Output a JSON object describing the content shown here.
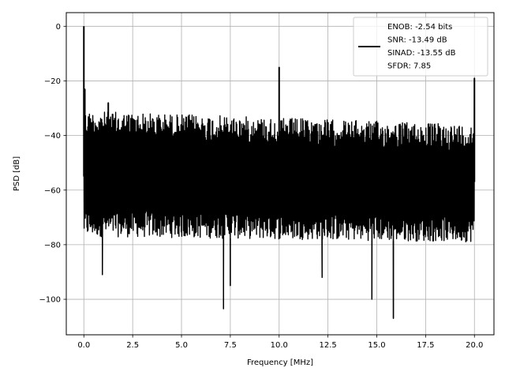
{
  "chart_data": {
    "type": "line",
    "xlabel": "Frequency [MHz]",
    "ylabel": "PSD [dB]",
    "xlim": [
      -0.9,
      21.0
    ],
    "ylim": [
      -113,
      5
    ],
    "xticks": [
      0.0,
      2.5,
      5.0,
      7.5,
      10.0,
      12.5,
      15.0,
      17.5,
      20.0
    ],
    "xtick_labels": [
      "0.0",
      "2.5",
      "5.0",
      "7.5",
      "10.0",
      "12.5",
      "15.0",
      "17.5",
      "20.0"
    ],
    "yticks": [
      0,
      -20,
      -40,
      -60,
      -80,
      -100
    ],
    "ytick_labels": [
      "0",
      "−20",
      "−40",
      "−60",
      "−80",
      "−100"
    ],
    "grid": true,
    "line_color": "#000000",
    "legend": {
      "placement": "top-right",
      "entries": [
        "ENOB: -2.54 bits",
        "SNR: -13.49 dB",
        "SINAD: -13.55 dB",
        "SFDR: 7.85"
      ]
    },
    "series": [
      {
        "x_range": [
          0.0,
          20.0
        ],
        "noise_floor_top": [
          [
            0.0,
            -31
          ],
          [
            20.0,
            -36
          ]
        ],
        "noise_floor_bottom": [
          [
            0.0,
            -77
          ],
          [
            20.0,
            -79
          ]
        ],
        "noise_floor_mean": [
          [
            0.0,
            -55
          ],
          [
            20.0,
            -57
          ]
        ],
        "peaks": [
          [
            0.0,
            0
          ],
          [
            0.05,
            -23
          ],
          [
            1.25,
            -28
          ],
          [
            10.0,
            -15
          ],
          [
            20.0,
            -19
          ]
        ],
        "dips": [
          [
            7.15,
            -103.5
          ],
          [
            15.85,
            -107
          ],
          [
            14.75,
            -100
          ],
          [
            7.5,
            -95
          ],
          [
            0.95,
            -91
          ],
          [
            12.2,
            -92
          ]
        ]
      }
    ]
  }
}
